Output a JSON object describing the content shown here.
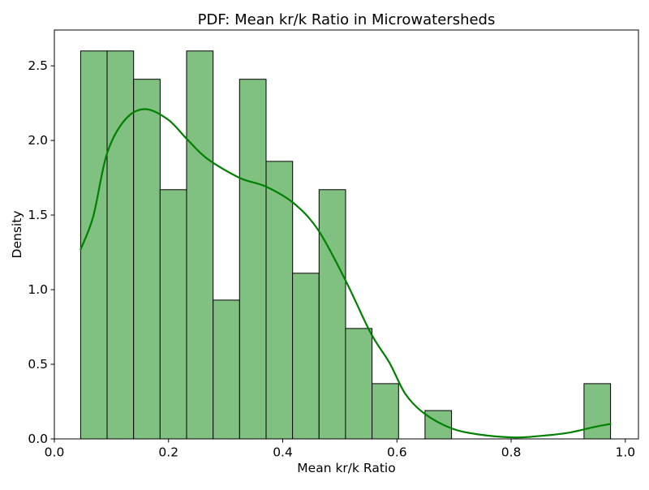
{
  "chart_data": {
    "type": "bar",
    "subtype": "histogram_with_kde",
    "title": "PDF: Mean kr/k Ratio in Microwatersheds",
    "xlabel": "Mean kr/k Ratio",
    "ylabel": "Density",
    "xlim": [
      0,
      1.023
    ],
    "ylim": [
      0,
      2.74
    ],
    "grid": false,
    "legend": "none",
    "x_ticks": [
      {
        "value": 0.0,
        "label": "0.0"
      },
      {
        "value": 0.2,
        "label": "0.2"
      },
      {
        "value": 0.4,
        "label": "0.4"
      },
      {
        "value": 0.6,
        "label": "0.6"
      },
      {
        "value": 0.8,
        "label": "0.8"
      },
      {
        "value": 1.0,
        "label": "1.0"
      }
    ],
    "y_ticks": [
      {
        "value": 0.0,
        "label": "0.0"
      },
      {
        "value": 0.5,
        "label": "0.5"
      },
      {
        "value": 1.0,
        "label": "1.0"
      },
      {
        "value": 1.5,
        "label": "1.5"
      },
      {
        "value": 2.0,
        "label": "2.0"
      },
      {
        "value": 2.5,
        "label": "2.5"
      }
    ],
    "histogram": {
      "bin_start": 0.046,
      "bin_width": 0.0464,
      "bin_count": 20,
      "densities": [
        2.6,
        2.6,
        2.41,
        1.67,
        2.6,
        0.93,
        2.41,
        1.86,
        1.11,
        1.67,
        0.74,
        0.37,
        0,
        0.19,
        0,
        0,
        0,
        0,
        0,
        0.37
      ],
      "fill_color": "#80c080",
      "edge_color": "#000000"
    },
    "kde": {
      "color": "#008000",
      "line_width": 2.2,
      "points": [
        [
          0.046,
          1.27
        ],
        [
          0.068,
          1.49
        ],
        [
          0.092,
          1.91
        ],
        [
          0.124,
          2.14
        ],
        [
          0.159,
          2.21
        ],
        [
          0.199,
          2.14
        ],
        [
          0.232,
          2.01
        ],
        [
          0.267,
          1.88
        ],
        [
          0.324,
          1.75
        ],
        [
          0.371,
          1.69
        ],
        [
          0.419,
          1.58
        ],
        [
          0.462,
          1.4
        ],
        [
          0.509,
          1.07
        ],
        [
          0.554,
          0.71
        ],
        [
          0.587,
          0.51
        ],
        [
          0.615,
          0.3
        ],
        [
          0.648,
          0.17
        ],
        [
          0.696,
          0.07
        ],
        [
          0.743,
          0.03
        ],
        [
          0.804,
          0.01
        ],
        [
          0.852,
          0.02
        ],
        [
          0.899,
          0.04
        ],
        [
          0.946,
          0.08
        ],
        [
          0.974,
          0.1
        ]
      ]
    },
    "colors": {
      "background": "#ffffff",
      "spine": "#000000"
    }
  }
}
